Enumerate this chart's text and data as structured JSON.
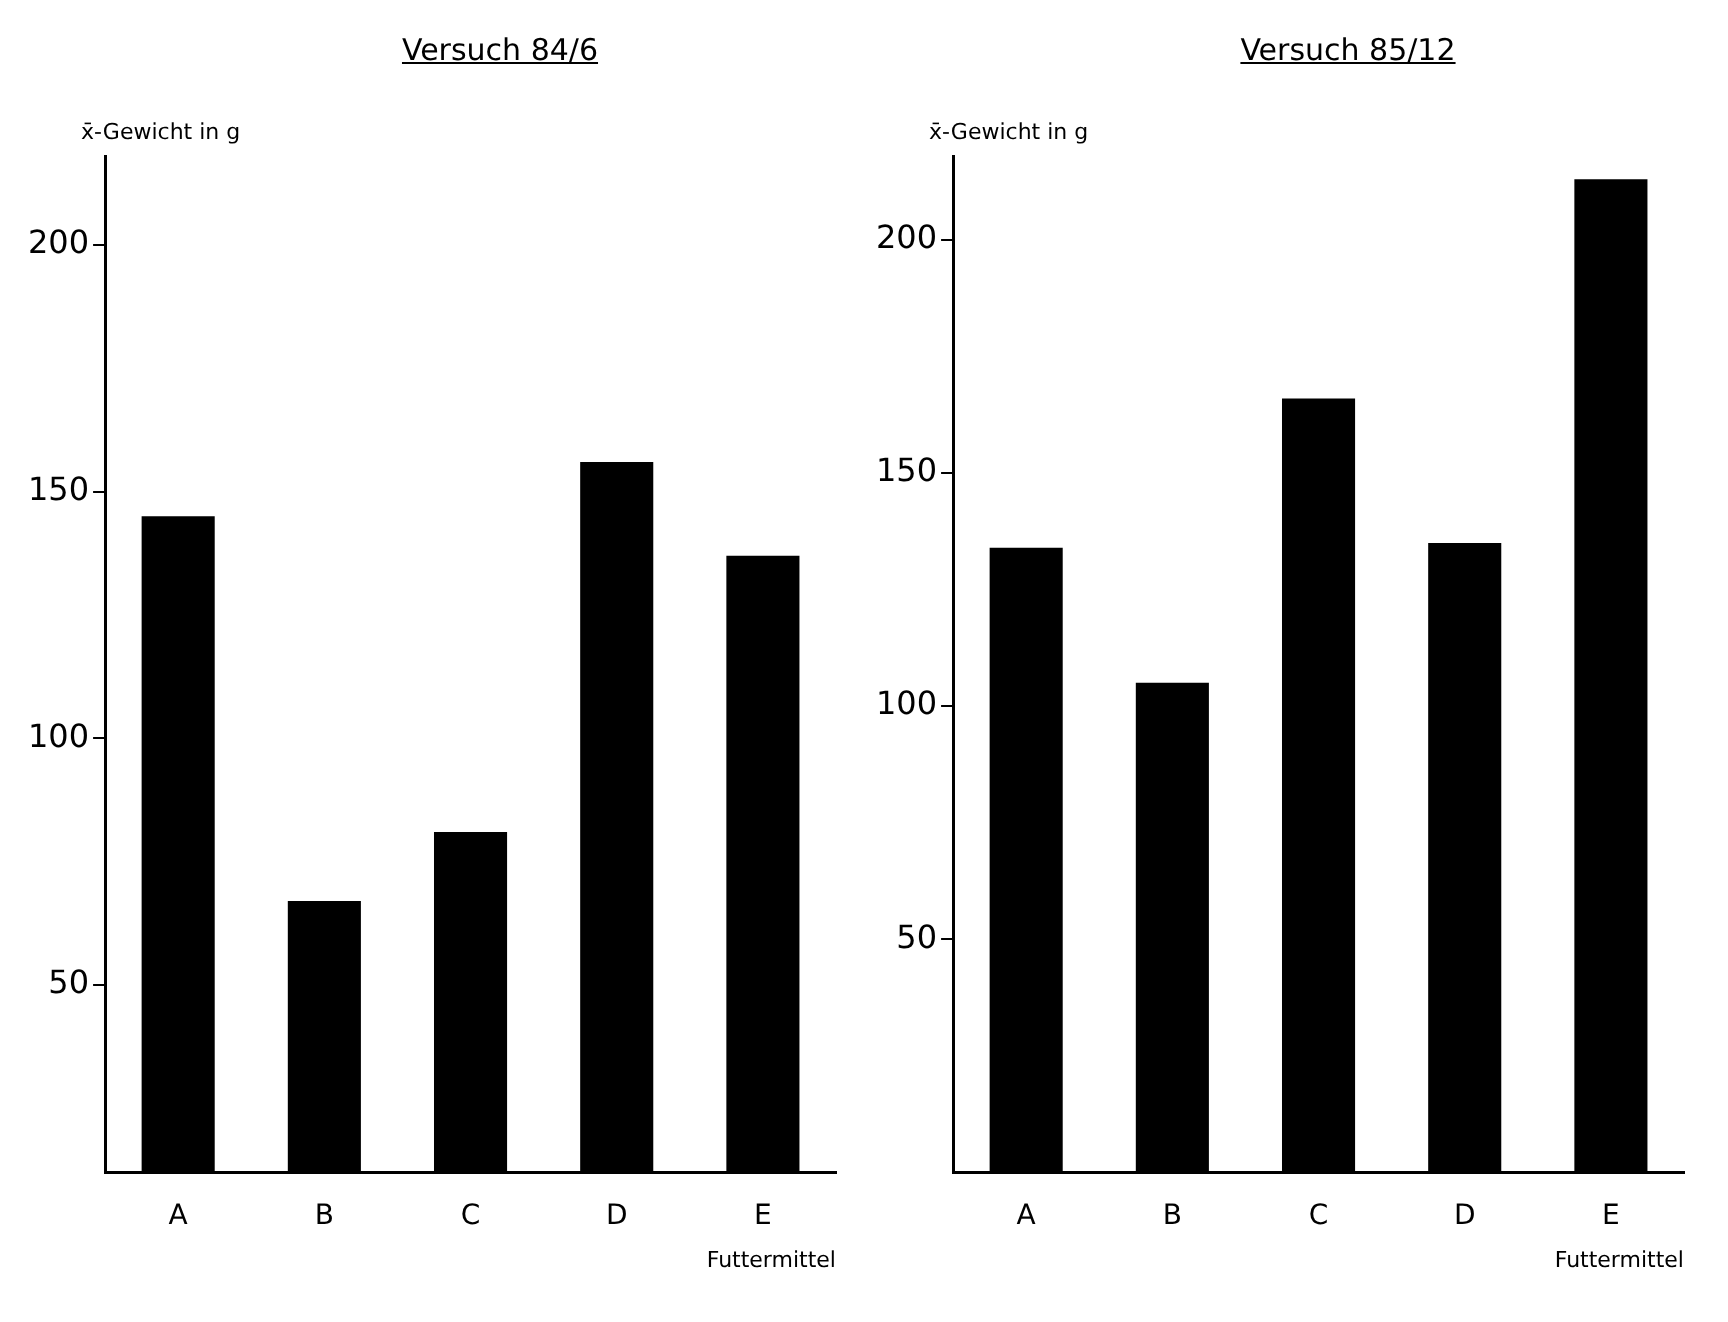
{
  "chart_data": [
    {
      "type": "bar",
      "title": "Versuch 84/6",
      "ylabel": "x̄-Gewicht in g",
      "xlabel": "Futtermittel",
      "categories": [
        "A",
        "B",
        "C",
        "D",
        "E"
      ],
      "values": [
        145,
        67,
        81,
        156,
        137
      ],
      "color": "#000000",
      "ylim": [
        12,
        218
      ],
      "yticks": [
        50,
        100,
        150,
        200
      ]
    },
    {
      "type": "bar",
      "title": "Versuch 85/12",
      "ylabel": "x̄-Gewicht in g",
      "xlabel": "Futtermittel",
      "categories": [
        "A",
        "B",
        "C",
        "D",
        "E"
      ],
      "values": [
        134,
        105,
        166,
        135,
        213
      ],
      "color": "#000000",
      "ylim": [
        0,
        218
      ],
      "yticks": [
        50,
        100,
        150,
        200
      ]
    }
  ]
}
